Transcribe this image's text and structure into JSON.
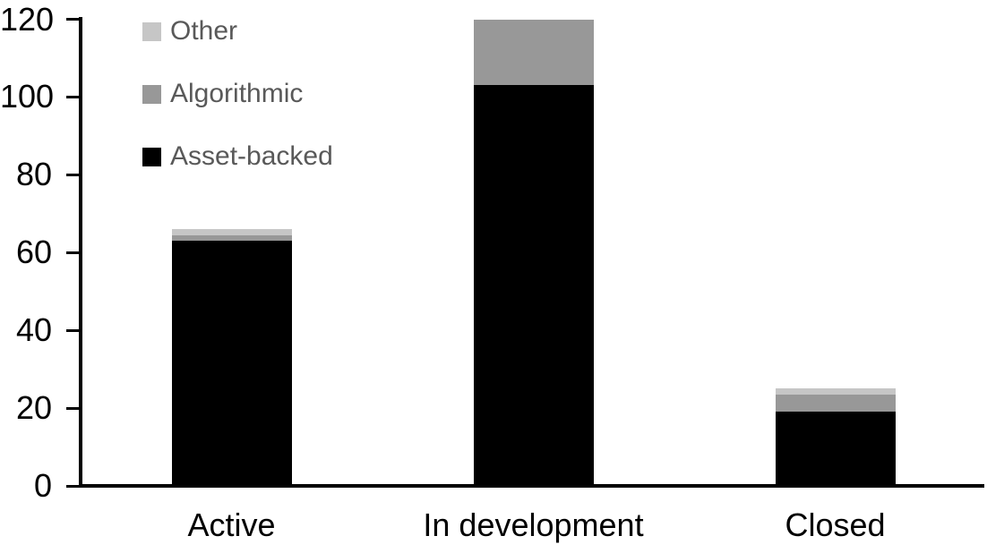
{
  "chart_data": {
    "type": "bar",
    "stacked": true,
    "title": "",
    "xlabel": "",
    "ylabel": "",
    "categories": [
      "Active",
      "In development",
      "Closed"
    ],
    "series": [
      {
        "name": "Asset-backed",
        "color": "#000000",
        "values": [
          63,
          103,
          19
        ]
      },
      {
        "name": "Algorithmic",
        "color": "#989898",
        "values": [
          1.5,
          17,
          4.5
        ]
      },
      {
        "name": "Other",
        "color": "#c6c6c6",
        "values": [
          1.5,
          0,
          1.5
        ]
      }
    ],
    "totals": [
      66,
      120,
      25
    ],
    "ylim": [
      0,
      120
    ],
    "y_ticks": [
      0,
      20,
      40,
      60,
      80,
      100,
      120
    ],
    "grid": false,
    "legend_position": "top-left",
    "legend_order": [
      "Other",
      "Algorithmic",
      "Asset-backed"
    ],
    "colors": {
      "axis": "#000000",
      "tick_label": "#000000",
      "x_label": "#000000",
      "legend_text": "#595959",
      "background": "#ffffff"
    }
  }
}
